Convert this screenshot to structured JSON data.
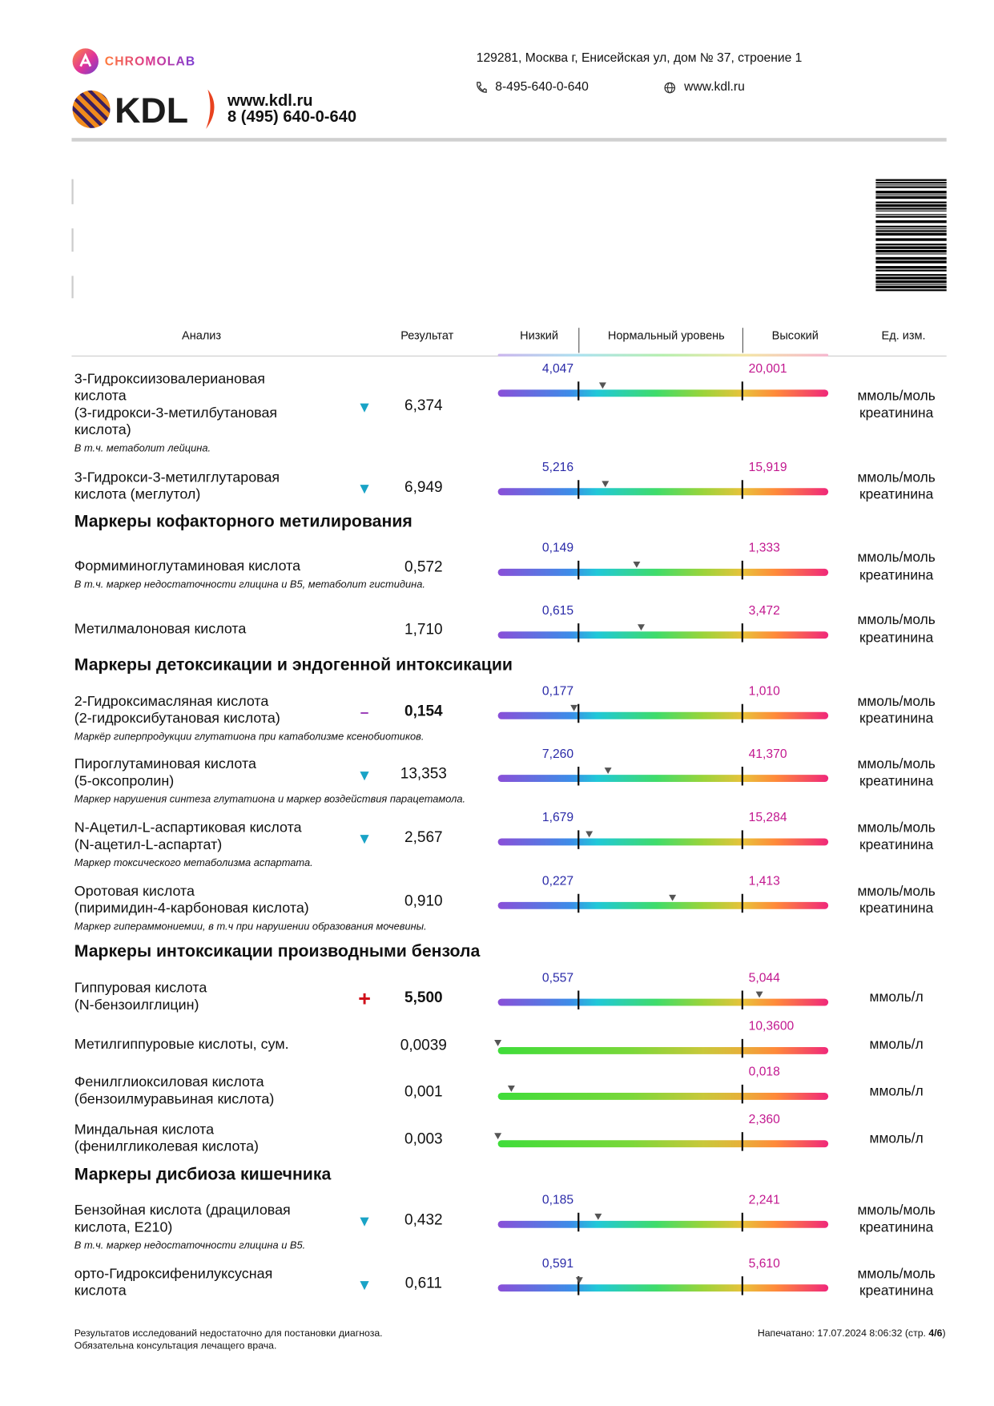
{
  "header": {
    "chromolab": "CHROMOLAB",
    "kdl": "KDL",
    "kdl_site": "www.kdl.ru",
    "kdl_phone": "8 (495) 640-0-640",
    "address": "129281, Москва г, Енисейская ул, дом № 37, строение 1",
    "phone": "8-495-640-0-640",
    "site": "www.kdl.ru"
  },
  "table": {
    "columns": [
      "Анализ",
      "Результат",
      "Низкий",
      "Нормальный уровень",
      "Высокий",
      "Ед. изм."
    ],
    "blocks": [
      {
        "rows": [
          {
            "name": [
              "3-Гидроксиизовалериановая",
              "кислота",
              "(3-гидрокси-3-метилбутановая",
              "кислота)"
            ],
            "note": "В т.ч. метаболит лейцина.",
            "flag": "▼",
            "result": "6,374",
            "low": "4,047",
            "high": "20,001",
            "units": [
              "ммоль/моль",
              "креатинина"
            ]
          },
          {
            "name": [
              "3-Гидрокси-3-метилглутаровая",
              "кислота (меглутол)"
            ],
            "flag": "▼",
            "result": "6,949",
            "low": "5,216",
            "high": "15,919",
            "units": [
              "ммоль/моль",
              "креатинина"
            ]
          }
        ]
      },
      {
        "section": "Маркеры кофакторного метилирования",
        "rows": [
          {
            "name": [
              "Формиминоглутаминовая кислота"
            ],
            "note": "В т.ч. маркер недостаточности глицина и В5, метаболит гистидина.",
            "result": "0,572",
            "low": "0,149",
            "high": "1,333",
            "units": [
              "ммоль/моль",
              "креатинина"
            ]
          },
          {
            "name": [
              "Метилмалоновая кислота"
            ],
            "result": "1,710",
            "low": "0,615",
            "high": "3,472",
            "units": [
              "ммоль/моль",
              "креатинина"
            ]
          }
        ]
      },
      {
        "section": "Маркеры детоксикации и эндогенной интоксикации",
        "rows": [
          {
            "name": [
              "2-Гидроксимасляная кислота",
              "(2-гидроксибутановая кислота)"
            ],
            "note": "Маркёр гиперпродукции глутатиона при катаболизме ксенобиотиков.",
            "flag": "–",
            "result": "0,154",
            "low": "0,177",
            "high": "1,010",
            "units": [
              "ммоль/моль",
              "креатинина"
            ]
          },
          {
            "name": [
              "Пироглутаминовая кислота",
              "(5-оксопролин)"
            ],
            "note": "Маркер нарушения синтеза глутатиона и маркер воздействия парацетамола.",
            "flag": "▼",
            "result": "13,353",
            "low": "7,260",
            "high": "41,370",
            "units": [
              "ммоль/моль",
              "креатинина"
            ]
          },
          {
            "name": [
              "N-Ацетил-L-аспартиковая кислота",
              "(N-ацетил-L-аспартат)"
            ],
            "note": "Маркер токсического метаболизма аспартата.",
            "flag": "▼",
            "result": "2,567",
            "low": "1,679",
            "high": "15,284",
            "units": [
              "ммоль/моль",
              "креатинина"
            ]
          },
          {
            "name": [
              "Оротовая кислота",
              "(пиримидин-4-карбоновая кислота)"
            ],
            "note": "Маркер гипераммониемии, в т.ч при нарушении образования мочевины.",
            "result": "0,910",
            "low": "0,227",
            "high": "1,413",
            "units": [
              "ммоль/моль",
              "креатинина"
            ]
          }
        ]
      },
      {
        "section": "Маркеры интоксикации производными бензола",
        "rows": [
          {
            "name": [
              "Гиппуровая кислота",
              "(N-бензоилглицин)"
            ],
            "flag": "+",
            "result": "5,500",
            "low": "0,557",
            "high": "5,044",
            "units": [
              "ммоль/л"
            ]
          },
          {
            "name": [
              "Метилгиппуровые кислоты, сум."
            ],
            "result": "0,0039",
            "high": "10,3600",
            "units": [
              "ммоль/л"
            ]
          },
          {
            "name": [
              "Фенилглиоксиловая кислота",
              "(бензоилмуравьиная кислота)"
            ],
            "result": "0,001",
            "high": "0,018",
            "units": [
              "ммоль/л"
            ]
          },
          {
            "name": [
              "Миндальная кислота",
              "(фенилгликолевая кислота)"
            ],
            "result": "0,003",
            "high": "2,360",
            "units": [
              "ммоль/л"
            ]
          }
        ]
      },
      {
        "section": "Маркеры дисбиоза кишечника",
        "rows": [
          {
            "name": [
              "Бензойная кислота (драциловая",
              "кислота, Е210)"
            ],
            "note": "В т.ч. маркер недостаточности глицина и В5.",
            "flag": "▼",
            "result": "0,432",
            "low": "0,185",
            "high": "2,241",
            "units": [
              "ммоль/моль",
              "креатинина"
            ]
          },
          {
            "name": [
              "орто-Гидроксифенилуксусная",
              "кислота"
            ],
            "flag": "▼",
            "result": "0,611",
            "low": "0,591",
            "high": "5,610",
            "units": [
              "ммоль/моль",
              "креатинина"
            ]
          }
        ]
      }
    ]
  },
  "footer": {
    "lines": [
      "Результатов исследований недостаточно для постановки диагноза.",
      "Обязательна консультация лечащего врача."
    ],
    "printed": "Напечатано: 17.07.2024 8:06:32 (стр.",
    "page": "4/6",
    "close": ")"
  }
}
